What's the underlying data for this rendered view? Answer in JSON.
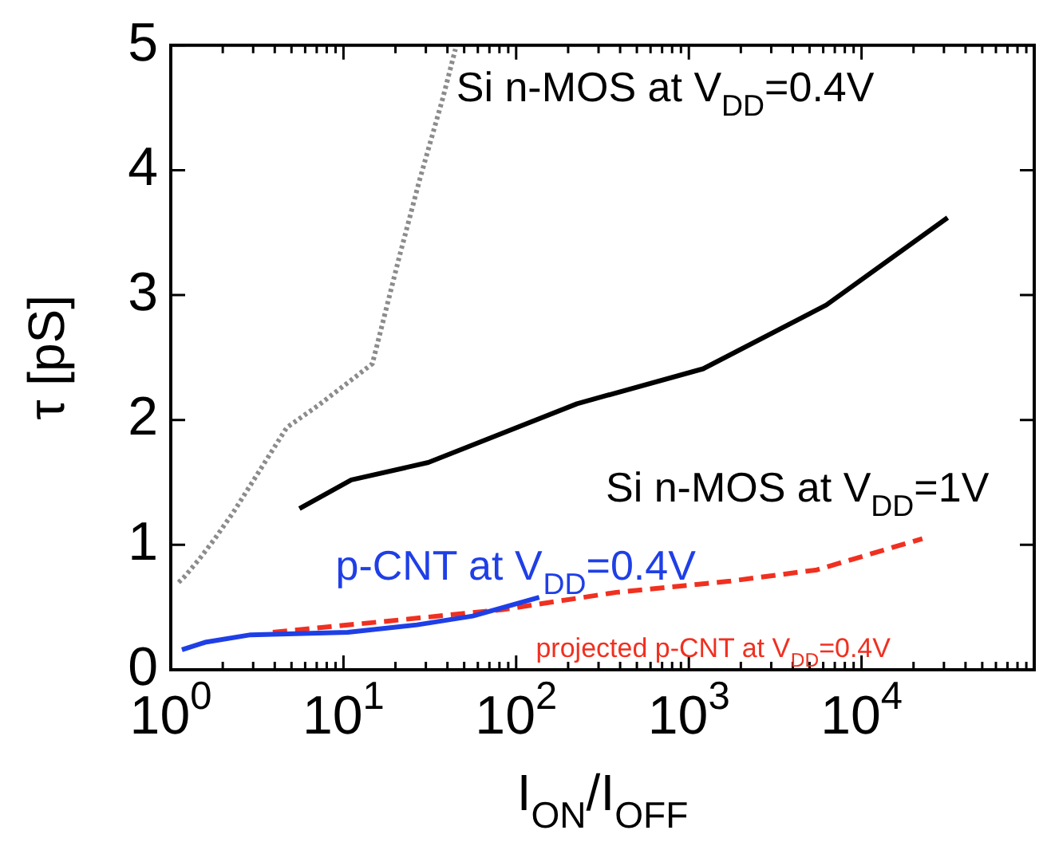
{
  "chart_data": {
    "type": "line",
    "xlabel": "I$_{ON}$/I$_{OFF}$",
    "ylabel": "τ [pS]",
    "log": "x",
    "grid": false,
    "legend": false,
    "marker": "none",
    "xlim": [
      1,
      100000
    ],
    "xticks": [
      {
        "value": 1,
        "label": "10$^{0}$"
      },
      {
        "value": 10,
        "label": "10$^{1}$"
      },
      {
        "value": 100,
        "label": "10$^{2}$"
      },
      {
        "value": 1000,
        "label": "10$^{3}$"
      },
      {
        "value": 10000,
        "label": "10$^{4}$"
      }
    ],
    "ylim": [
      0,
      5
    ],
    "yticks": [
      0,
      1,
      2,
      3,
      4,
      5
    ],
    "annotations": [
      "Si n-MOS at V$_{DD}$=0.4V",
      "Si n-MOS at V$_{DD}$=1V",
      "p-CNT at V$_{DD}$=0.4V",
      "projected p-CNT at V$_{DD}$=0.4V"
    ],
    "series": [
      {
        "color": "#8c8c8c",
        "line_style": "dotted",
        "x": [
          1.11,
          1.21,
          1.47,
          1.8,
          2.3,
          4.7,
          7.2,
          14.7,
          21,
          27.7,
          37.5,
          44.5
        ],
        "values": [
          0.7,
          0.75,
          0.89,
          1.05,
          1.26,
          1.94,
          2.12,
          2.45,
          3.3,
          3.93,
          4.57,
          4.97
        ]
      },
      {
        "color": "#000000",
        "line_style": "solid",
        "x": [
          5.56,
          11.1,
          31,
          225,
          1210,
          6240,
          31500
        ],
        "values": [
          1.29,
          1.52,
          1.66,
          2.13,
          2.41,
          2.92,
          3.62
        ]
      },
      {
        "color": "#1f3fe6",
        "line_style": "solid",
        "x": [
          1.16,
          1.58,
          2.9,
          10.6,
          26.7,
          56,
          136
        ],
        "values": [
          0.16,
          0.22,
          0.28,
          0.3,
          0.36,
          0.43,
          0.58
        ]
      },
      {
        "color": "#f03020",
        "line_style": "dashed",
        "x": [
          3.9,
          18.1,
          82,
          380,
          1740,
          5520,
          22500
        ],
        "values": [
          0.3,
          0.39,
          0.48,
          0.62,
          0.71,
          0.8,
          1.05
        ]
      }
    ]
  }
}
